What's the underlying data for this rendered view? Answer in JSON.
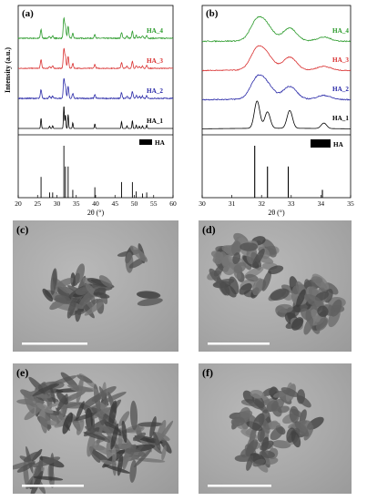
{
  "chart_data": [
    {
      "panel": "(a)",
      "type": "line",
      "xlabel": "2θ (°)",
      "ylabel": "Intensity (a.u.)",
      "xlim": [
        20,
        60
      ],
      "xticks": [
        20,
        25,
        30,
        35,
        40,
        45,
        50,
        55,
        60
      ],
      "grid": false,
      "series": [
        {
          "name": "HA_4",
          "color": "#2a9a2a",
          "offset": 3,
          "noise": 0.04
        },
        {
          "name": "HA_3",
          "color": "#d93030",
          "offset": 2,
          "noise": 0.03
        },
        {
          "name": "HA_2",
          "color": "#2a2aa8",
          "offset": 1,
          "noise": 0.04
        },
        {
          "name": "HA_1",
          "color": "#000000",
          "offset": 0,
          "noise": 0.0
        }
      ],
      "peaks": [
        {
          "x": 25.9,
          "y": 0.45
        },
        {
          "x": 28.1,
          "y": 0.1
        },
        {
          "x": 28.9,
          "y": 0.12
        },
        {
          "x": 31.8,
          "y": 1.0
        },
        {
          "x": 32.2,
          "y": 0.6
        },
        {
          "x": 32.9,
          "y": 0.62
        },
        {
          "x": 34.1,
          "y": 0.25
        },
        {
          "x": 39.8,
          "y": 0.2
        },
        {
          "x": 46.7,
          "y": 0.3
        },
        {
          "x": 48.1,
          "y": 0.12
        },
        {
          "x": 49.5,
          "y": 0.35
        },
        {
          "x": 50.5,
          "y": 0.15
        },
        {
          "x": 51.3,
          "y": 0.1
        },
        {
          "x": 52.1,
          "y": 0.12
        },
        {
          "x": 53.2,
          "y": 0.15
        }
      ],
      "reference": {
        "name": "HA",
        "lines": [
          {
            "x": 25.9,
            "y": 0.4
          },
          {
            "x": 28.1,
            "y": 0.1
          },
          {
            "x": 28.9,
            "y": 0.1
          },
          {
            "x": 31.8,
            "y": 1.0
          },
          {
            "x": 32.2,
            "y": 0.6
          },
          {
            "x": 32.9,
            "y": 0.6
          },
          {
            "x": 34.1,
            "y": 0.15
          },
          {
            "x": 39.8,
            "y": 0.2
          },
          {
            "x": 46.7,
            "y": 0.3
          },
          {
            "x": 49.5,
            "y": 0.3
          },
          {
            "x": 50.5,
            "y": 0.12
          },
          {
            "x": 52.1,
            "y": 0.08
          },
          {
            "x": 53.2,
            "y": 0.1
          }
        ]
      }
    },
    {
      "panel": "(b)",
      "type": "line",
      "xlabel": "2θ (°)",
      "xlim": [
        30,
        35
      ],
      "xticks": [
        30,
        31,
        32,
        33,
        34,
        35
      ],
      "grid": false,
      "series": [
        {
          "name": "HA_4",
          "color": "#2a9a2a",
          "offset": 3,
          "noise": 0.04
        },
        {
          "name": "HA_3",
          "color": "#d93030",
          "offset": 2,
          "noise": 0.03
        },
        {
          "name": "HA_2",
          "color": "#2a2aa8",
          "offset": 1,
          "noise": 0.04
        },
        {
          "name": "HA_1",
          "color": "#000000",
          "offset": 0,
          "noise": 0.0
        }
      ],
      "reference": {
        "name": "HA",
        "lines": [
          {
            "x": 31.77,
            "y": 1.0
          },
          {
            "x": 32.2,
            "y": 0.6
          },
          {
            "x": 32.9,
            "y": 0.6
          },
          {
            "x": 34.05,
            "y": 0.15
          }
        ]
      }
    }
  ],
  "tem_images": [
    {
      "label": "(c)"
    },
    {
      "label": "(d)"
    },
    {
      "label": "(e)"
    },
    {
      "label": "(f)"
    }
  ]
}
